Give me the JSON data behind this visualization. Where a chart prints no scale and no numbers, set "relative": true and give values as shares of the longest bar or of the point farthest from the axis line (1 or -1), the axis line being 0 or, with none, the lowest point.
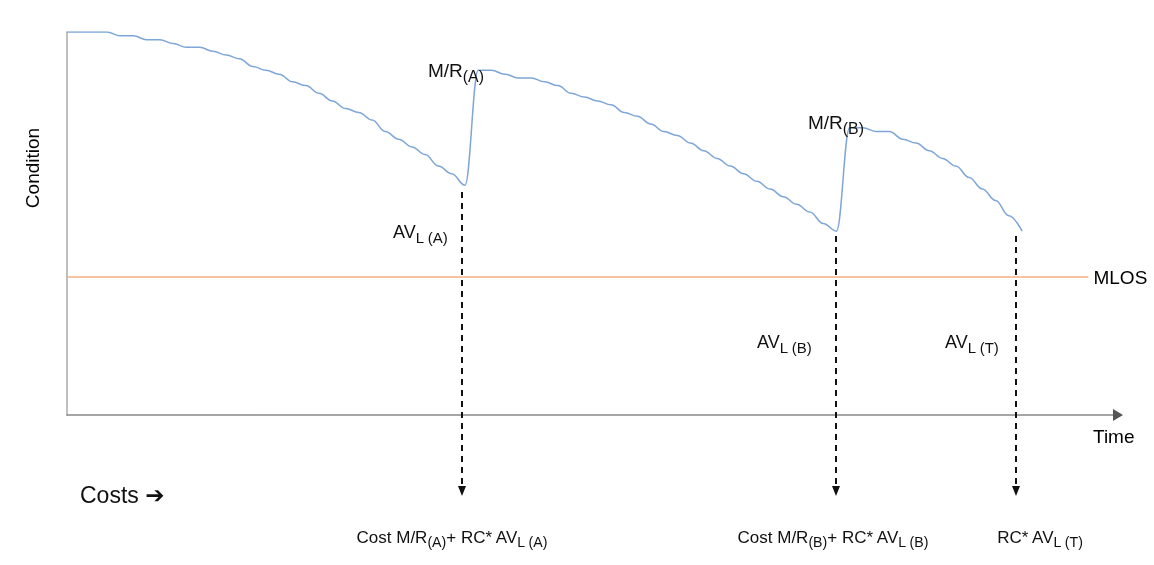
{
  "chart_data": {
    "type": "line",
    "relative": true,
    "xlabel": "Time",
    "ylabel": "Condition",
    "grid": false,
    "marker": "none",
    "line_style": "solid",
    "categories": [
      null,
      null,
      null,
      null,
      null,
      null,
      null,
      null,
      null,
      null,
      null,
      null,
      null,
      null,
      null,
      null,
      null,
      null,
      null,
      null,
      null,
      null,
      null,
      null,
      null,
      null,
      null,
      null,
      null,
      null,
      null,
      null,
      null,
      null,
      null,
      null,
      null,
      null,
      null,
      null,
      null,
      null,
      null,
      null,
      null,
      null,
      null,
      null,
      null,
      null,
      null,
      null,
      null,
      null,
      null,
      null,
      null,
      null,
      null,
      null,
      null,
      null,
      null,
      null,
      null,
      null,
      null,
      null,
      null,
      null,
      null,
      null,
      null,
      null,
      null,
      null,
      null,
      null,
      null,
      null
    ],
    "series": [
      {
        "color": "#7ea6d8",
        "values": [
          1.0,
          1.0,
          1.0,
          1.0,
          0.99,
          0.99,
          0.98,
          0.98,
          0.97,
          0.96,
          0.96,
          0.95,
          0.94,
          0.93,
          0.91,
          0.9,
          0.89,
          0.87,
          0.86,
          0.84,
          0.82,
          0.8,
          0.79,
          0.77,
          0.74,
          0.72,
          0.7,
          0.68,
          0.65,
          0.63,
          0.6,
          0.9,
          0.9,
          0.89,
          0.88,
          0.88,
          0.87,
          0.86,
          0.84,
          0.83,
          0.82,
          0.81,
          0.79,
          0.78,
          0.76,
          0.74,
          0.73,
          0.71,
          0.69,
          0.67,
          0.65,
          0.63,
          0.61,
          0.59,
          0.57,
          0.55,
          0.53,
          0.5,
          0.48,
          0.75,
          0.75,
          0.74,
          0.74,
          0.72,
          0.71,
          0.69,
          0.67,
          0.65,
          0.62,
          0.59,
          0.56,
          0.52,
          0.48,
          null,
          null,
          null,
          null,
          null,
          null,
          null
        ]
      }
    ],
    "ref_lines": [
      {
        "axis": "y",
        "value": 0.36,
        "label": "MLOS",
        "color": "#f4b183"
      }
    ],
    "annotations": [
      "M/R$_{(A)}$",
      "AV$_{L (A)}$",
      "M/R$_{(B)}$",
      "AV$_{L (B)}$",
      "AV$_{L (T)}$",
      "Costs ➔",
      "Cost M/R$_{(A)}$+ RC* AV$_{L (A)}$",
      "Cost M/R$_{(B)}$+ RC* AV$_{L (B)}$",
      "RC* AV$_{L (T)}$"
    ]
  }
}
